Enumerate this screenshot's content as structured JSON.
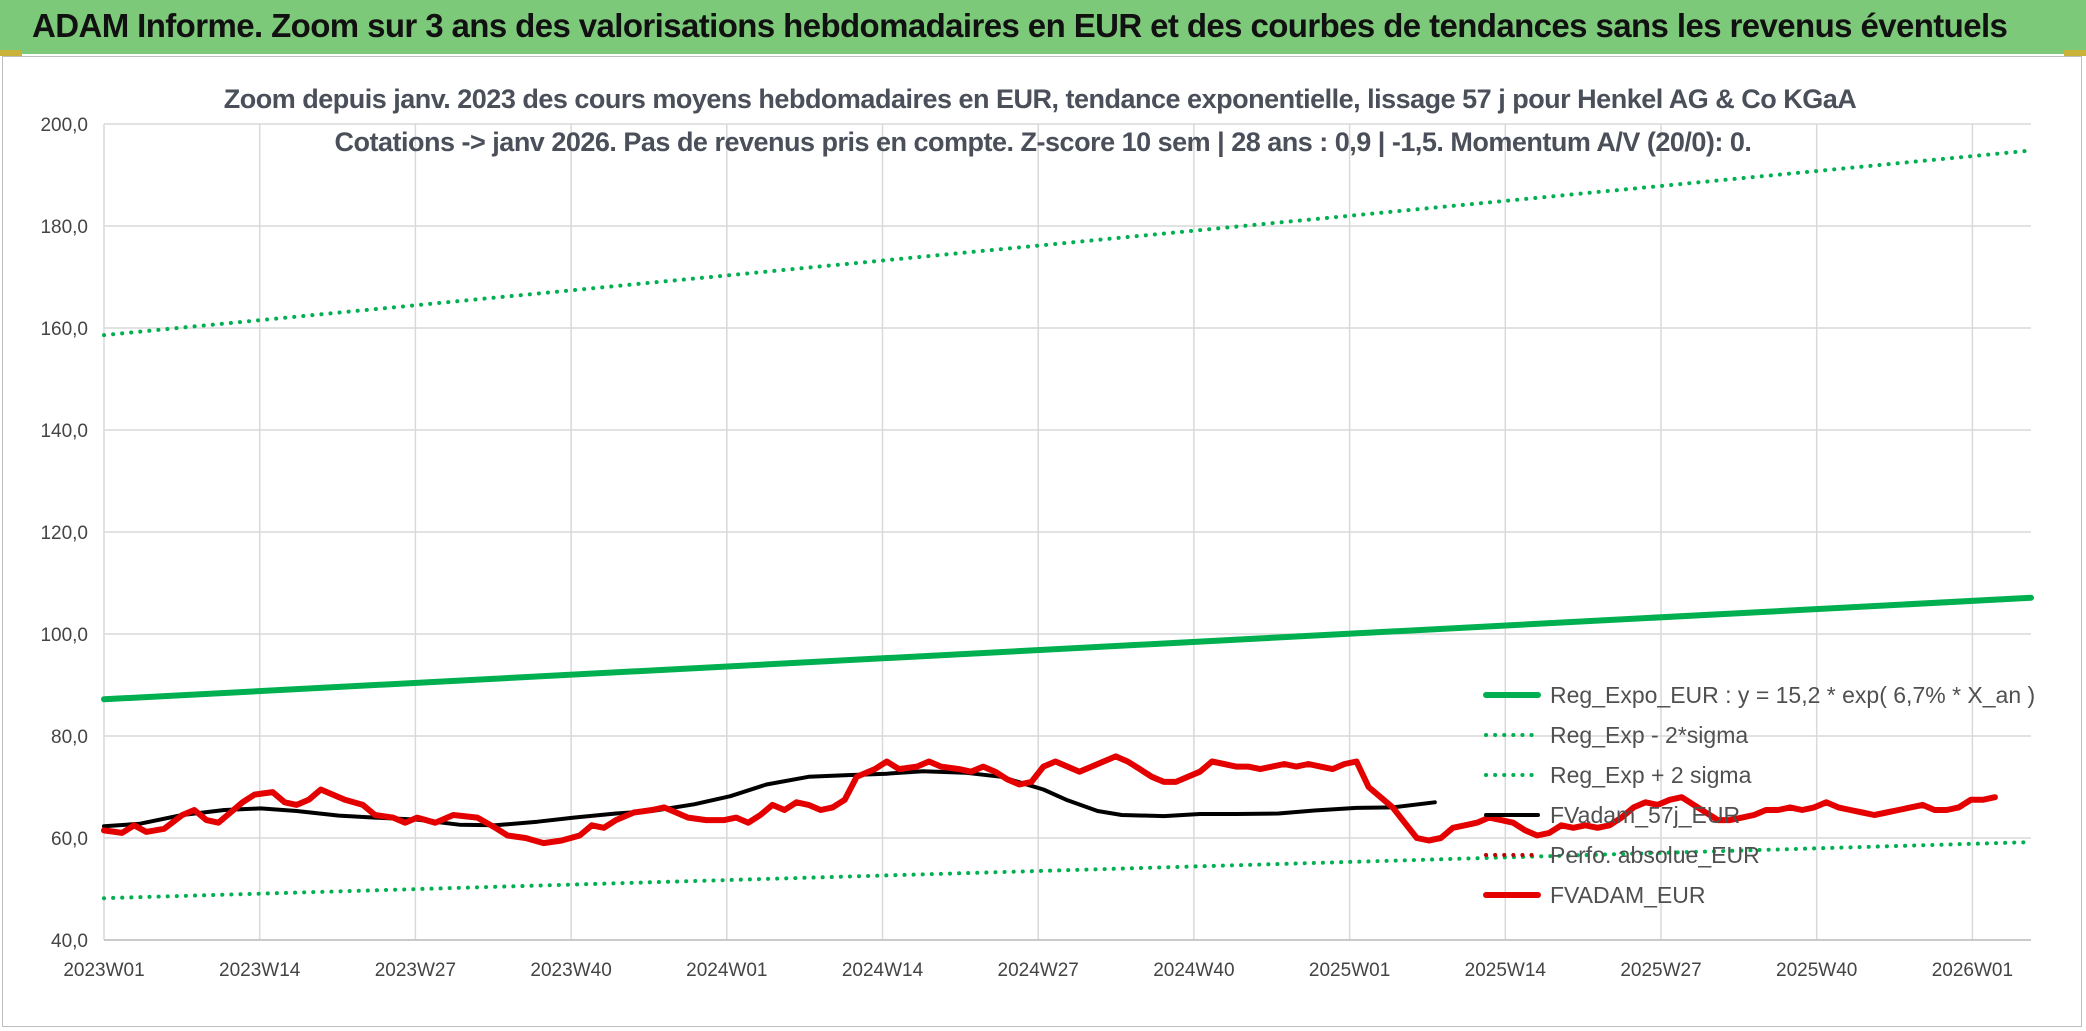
{
  "header": {
    "title": "ADAM Informe. Zoom sur 3 ans des valorisations hebdomadaires en EUR et des courbes de tendances sans les revenus éventuels"
  },
  "colors": {
    "banner": "#7dc97a",
    "reg_expo": "#00b050",
    "reg_band": "#00b050",
    "fvadam": "#e50000",
    "smooth": "#000000",
    "perfo": "#c00000",
    "grid": "#d9d9d9"
  },
  "chart_data": {
    "type": "line",
    "title_lines": [
      "Zoom depuis janv. 2023 des cours moyens hebdomadaires en EUR, tendance exponentielle, lissage 57 j pour Henkel AG & Co KGaA",
      "Cotations -> janv 2026. Pas de revenus pris en compte. Z-score 10 sem | 28 ans : 0,9 | -1,5. Momentum A/V (20/0): 0."
    ],
    "x_tick_labels": [
      "2023W01",
      "2023W14",
      "2023W27",
      "2023W40",
      "2024W01",
      "2024W14",
      "2024W27",
      "2024W40",
      "2025W01",
      "2025W14",
      "2025W27",
      "2025W40",
      "2026W01"
    ],
    "y_tick_labels": [
      "40,0",
      "60,0",
      "80,0",
      "100,0",
      "120,0",
      "140,0",
      "160,0",
      "180,0",
      "200,0"
    ],
    "ylim": [
      40,
      200
    ],
    "n_weeks": 162,
    "grid": true,
    "legend_position": "right",
    "series": [
      {
        "name": "Reg_Expo_EUR : y = 15,2 * exp( 6,7% *  X_an )",
        "style": "solid-thick",
        "color": "#00b050",
        "knots": [
          [
            0,
            87.2
          ],
          [
            161,
            107.1
          ]
        ]
      },
      {
        "name": "Reg_Exp - 2*sigma",
        "style": "dotted",
        "color": "#00b050",
        "knots": [
          [
            0,
            48.2
          ],
          [
            161,
            59.2
          ]
        ]
      },
      {
        "name": "Reg_Exp + 2 sigma",
        "style": "dotted",
        "color": "#00b050",
        "knots": [
          [
            0,
            158.6
          ],
          [
            161,
            194.8
          ]
        ]
      },
      {
        "name": "FVadam_57j_EUR",
        "style": "solid",
        "color": "#000000",
        "knots": [
          [
            0,
            62.3
          ],
          [
            6,
            62.8
          ],
          [
            13,
            64.5
          ],
          [
            20,
            65.5
          ],
          [
            26,
            65.8
          ],
          [
            32,
            65.3
          ],
          [
            39,
            64.4
          ],
          [
            45,
            64.0
          ],
          [
            52,
            63.6
          ],
          [
            59,
            62.6
          ],
          [
            65,
            62.5
          ],
          [
            72,
            63.2
          ],
          [
            78,
            64.0
          ],
          [
            85,
            64.8
          ],
          [
            91,
            65.3
          ],
          [
            98,
            66.6
          ],
          [
            104,
            68.2
          ],
          [
            110,
            70.5
          ],
          [
            117,
            72.0
          ],
          [
            123,
            72.3
          ],
          [
            130,
            72.6
          ],
          [
            136,
            73.1
          ],
          [
            143,
            72.8
          ],
          [
            149,
            72.0
          ],
          [
            156,
            69.5
          ],
          [
            160,
            67.4
          ],
          [
            165,
            65.3
          ],
          [
            169,
            64.5
          ],
          [
            176,
            64.3
          ],
          [
            182,
            64.7
          ],
          [
            188,
            64.7
          ],
          [
            195,
            64.8
          ],
          [
            201,
            65.4
          ],
          [
            208,
            65.9
          ],
          [
            214,
            66.0
          ],
          [
            221,
            67.0
          ]
        ]
      },
      {
        "name": "Perfo. absolue_EUR",
        "style": "dotted",
        "color": "#c00000",
        "knots": []
      },
      {
        "name": "FVADAM_EUR",
        "style": "solid-thick",
        "color": "#e50000",
        "knots": [
          [
            0,
            61.5
          ],
          [
            3,
            61.0
          ],
          [
            5,
            62.5
          ],
          [
            7,
            61.2
          ],
          [
            10,
            61.8
          ],
          [
            13,
            64.5
          ],
          [
            15,
            65.5
          ],
          [
            17,
            63.5
          ],
          [
            19,
            63.0
          ],
          [
            21,
            65.0
          ],
          [
            23,
            67.0
          ],
          [
            25,
            68.5
          ],
          [
            28,
            69.0
          ],
          [
            30,
            67.0
          ],
          [
            32,
            66.5
          ],
          [
            34,
            67.5
          ],
          [
            36,
            69.5
          ],
          [
            38,
            68.5
          ],
          [
            40,
            67.5
          ],
          [
            43,
            66.5
          ],
          [
            45,
            64.5
          ],
          [
            48,
            64.0
          ],
          [
            50,
            63.0
          ],
          [
            52,
            64.0
          ],
          [
            55,
            63.0
          ],
          [
            58,
            64.5
          ],
          [
            62,
            64.0
          ],
          [
            65,
            62.0
          ],
          [
            67,
            60.5
          ],
          [
            70,
            60.0
          ],
          [
            73,
            59.0
          ],
          [
            76,
            59.5
          ],
          [
            79,
            60.5
          ],
          [
            81,
            62.5
          ],
          [
            83,
            62.0
          ],
          [
            85,
            63.5
          ],
          [
            88,
            65.0
          ],
          [
            91,
            65.5
          ],
          [
            93,
            66.0
          ],
          [
            95,
            65.0
          ],
          [
            97,
            64.0
          ],
          [
            100,
            63.5
          ],
          [
            103,
            63.5
          ],
          [
            105,
            64.0
          ],
          [
            107,
            63.0
          ],
          [
            109,
            64.5
          ],
          [
            111,
            66.5
          ],
          [
            113,
            65.5
          ],
          [
            115,
            67.0
          ],
          [
            117,
            66.5
          ],
          [
            119,
            65.5
          ],
          [
            121,
            66.0
          ],
          [
            123,
            67.5
          ],
          [
            125,
            72.0
          ],
          [
            128,
            73.5
          ],
          [
            130,
            75.0
          ],
          [
            132,
            73.5
          ],
          [
            135,
            74.0
          ],
          [
            137,
            75.0
          ],
          [
            139,
            74.0
          ],
          [
            142,
            73.5
          ],
          [
            144,
            73.0
          ],
          [
            146,
            74.0
          ],
          [
            148,
            73.0
          ],
          [
            150,
            71.5
          ],
          [
            152,
            70.5
          ],
          [
            154,
            71.0
          ],
          [
            156,
            74.0
          ],
          [
            158,
            75.0
          ],
          [
            160,
            74.0
          ],
          [
            162,
            73.0
          ],
          [
            164,
            74.0
          ],
          [
            166,
            75.0
          ],
          [
            168,
            76.0
          ],
          [
            170,
            75.0
          ],
          [
            172,
            73.5
          ],
          [
            174,
            72.0
          ],
          [
            176,
            71.0
          ],
          [
            178,
            71.0
          ],
          [
            180,
            72.0
          ],
          [
            182,
            73.0
          ],
          [
            184,
            75.0
          ],
          [
            186,
            74.5
          ],
          [
            188,
            74.0
          ],
          [
            190,
            74.0
          ],
          [
            192,
            73.5
          ],
          [
            194,
            74.0
          ],
          [
            196,
            74.5
          ],
          [
            198,
            74.0
          ],
          [
            200,
            74.5
          ],
          [
            202,
            74.0
          ],
          [
            204,
            73.5
          ],
          [
            206,
            74.5
          ],
          [
            208,
            75.0
          ],
          [
            210,
            70.0
          ],
          [
            212,
            68.0
          ],
          [
            214,
            66.0
          ],
          [
            216,
            63.0
          ],
          [
            218,
            60.0
          ],
          [
            220,
            59.5
          ],
          [
            222,
            60.0
          ],
          [
            224,
            62.0
          ],
          [
            226,
            62.5
          ],
          [
            228,
            63.0
          ],
          [
            230,
            64.0
          ],
          [
            232,
            63.5
          ],
          [
            234,
            63.0
          ],
          [
            236,
            61.5
          ],
          [
            238,
            60.5
          ],
          [
            240,
            61.0
          ],
          [
            242,
            62.5
          ],
          [
            244,
            62.0
          ],
          [
            246,
            62.5
          ],
          [
            248,
            62.0
          ],
          [
            250,
            62.5
          ],
          [
            252,
            64.0
          ],
          [
            254,
            66.0
          ],
          [
            256,
            67.0
          ],
          [
            258,
            66.5
          ],
          [
            260,
            67.5
          ],
          [
            262,
            68.0
          ],
          [
            264,
            66.5
          ],
          [
            266,
            65.0
          ],
          [
            268,
            63.5
          ],
          [
            270,
            63.5
          ],
          [
            272,
            64.0
          ],
          [
            274,
            64.5
          ],
          [
            276,
            65.5
          ],
          [
            278,
            65.5
          ],
          [
            280,
            66.0
          ],
          [
            282,
            65.5
          ],
          [
            284,
            66.0
          ],
          [
            286,
            67.0
          ],
          [
            288,
            66.0
          ],
          [
            290,
            65.5
          ],
          [
            292,
            65.0
          ],
          [
            294,
            64.5
          ],
          [
            296,
            65.0
          ],
          [
            298,
            65.5
          ],
          [
            300,
            66.0
          ],
          [
            302,
            66.5
          ],
          [
            304,
            65.5
          ],
          [
            306,
            65.5
          ],
          [
            308,
            66.0
          ],
          [
            310,
            67.5
          ],
          [
            312,
            67.5
          ],
          [
            314,
            68.0
          ]
        ]
      }
    ]
  }
}
